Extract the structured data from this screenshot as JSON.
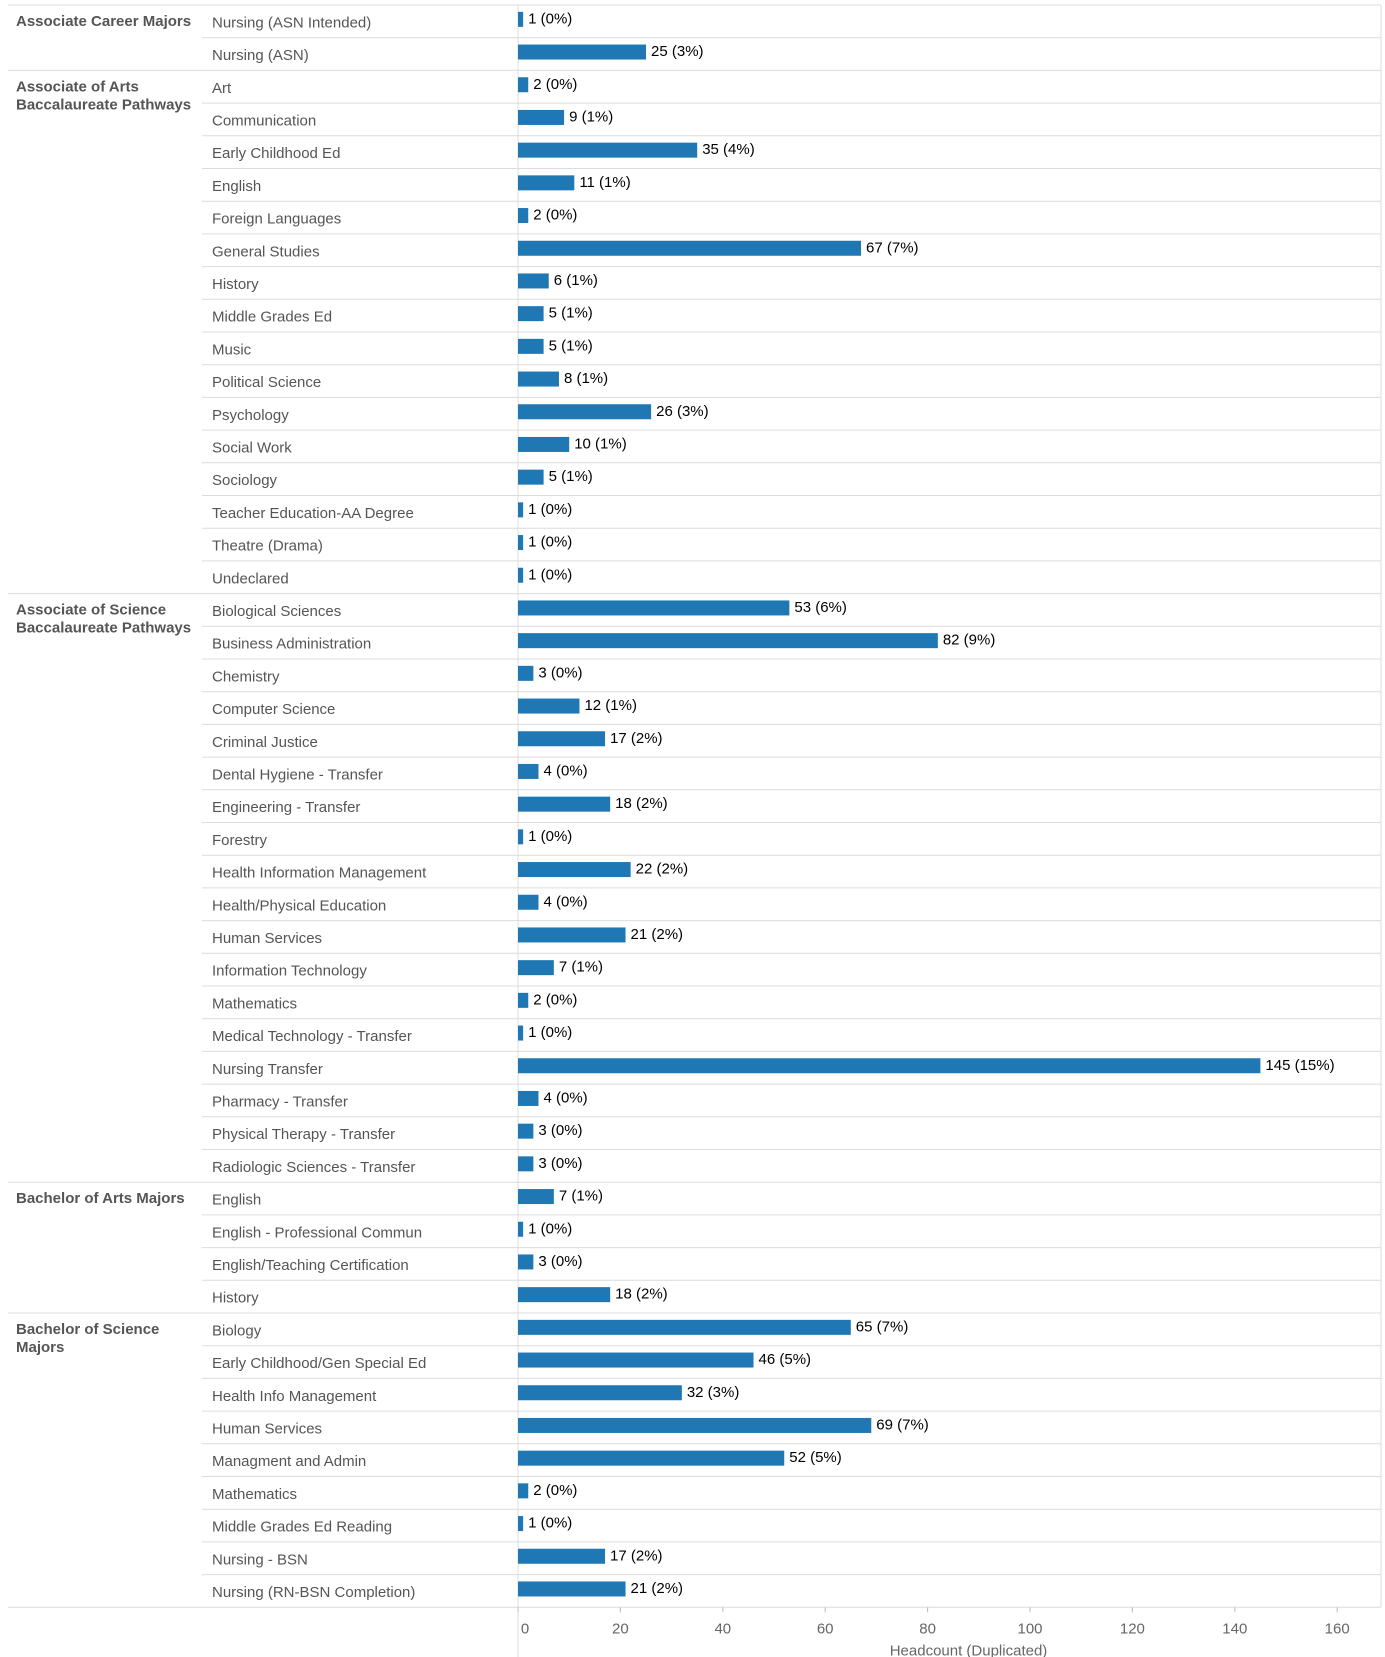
{
  "chart_data": {
    "type": "bar",
    "orientation": "horizontal",
    "xlabel": "Headcount (Duplicated)",
    "xlim": [
      0,
      165
    ],
    "x_ticks": [
      0,
      20,
      40,
      60,
      80,
      100,
      120,
      140,
      160
    ],
    "bar_color": "#1f77b4",
    "grid": false,
    "groups": [
      {
        "name": "Associate Career Majors",
        "items": [
          {
            "label": "Nursing (ASN Intended)",
            "value": 1,
            "pct": "0%"
          },
          {
            "label": "Nursing (ASN)",
            "value": 25,
            "pct": "3%"
          }
        ]
      },
      {
        "name": "Associate of Arts Baccalaureate Pathways",
        "items": [
          {
            "label": "Art",
            "value": 2,
            "pct": "0%"
          },
          {
            "label": "Communication",
            "value": 9,
            "pct": "1%"
          },
          {
            "label": "Early Childhood Ed",
            "value": 35,
            "pct": "4%"
          },
          {
            "label": "English",
            "value": 11,
            "pct": "1%"
          },
          {
            "label": "Foreign Languages",
            "value": 2,
            "pct": "0%"
          },
          {
            "label": "General Studies",
            "value": 67,
            "pct": "7%"
          },
          {
            "label": "History",
            "value": 6,
            "pct": "1%"
          },
          {
            "label": "Middle Grades Ed",
            "value": 5,
            "pct": "1%"
          },
          {
            "label": "Music",
            "value": 5,
            "pct": "1%"
          },
          {
            "label": "Political Science",
            "value": 8,
            "pct": "1%"
          },
          {
            "label": "Psychology",
            "value": 26,
            "pct": "3%"
          },
          {
            "label": "Social Work",
            "value": 10,
            "pct": "1%"
          },
          {
            "label": "Sociology",
            "value": 5,
            "pct": "1%"
          },
          {
            "label": "Teacher Education-AA Degree",
            "value": 1,
            "pct": "0%"
          },
          {
            "label": "Theatre (Drama)",
            "value": 1,
            "pct": "0%"
          },
          {
            "label": "Undeclared",
            "value": 1,
            "pct": "0%"
          }
        ]
      },
      {
        "name": "Associate of Science Baccalaureate Pathways",
        "items": [
          {
            "label": "Biological Sciences",
            "value": 53,
            "pct": "6%"
          },
          {
            "label": "Business Administration",
            "value": 82,
            "pct": "9%"
          },
          {
            "label": "Chemistry",
            "value": 3,
            "pct": "0%"
          },
          {
            "label": "Computer Science",
            "value": 12,
            "pct": "1%"
          },
          {
            "label": "Criminal Justice",
            "value": 17,
            "pct": "2%"
          },
          {
            "label": "Dental Hygiene - Transfer",
            "value": 4,
            "pct": "0%"
          },
          {
            "label": "Engineering - Transfer",
            "value": 18,
            "pct": "2%"
          },
          {
            "label": "Forestry",
            "value": 1,
            "pct": "0%"
          },
          {
            "label": "Health Information Management",
            "value": 22,
            "pct": "2%"
          },
          {
            "label": "Health/Physical Education",
            "value": 4,
            "pct": "0%"
          },
          {
            "label": "Human Services",
            "value": 21,
            "pct": "2%"
          },
          {
            "label": "Information Technology",
            "value": 7,
            "pct": "1%"
          },
          {
            "label": "Mathematics",
            "value": 2,
            "pct": "0%"
          },
          {
            "label": "Medical Technology - Transfer",
            "value": 1,
            "pct": "0%"
          },
          {
            "label": "Nursing Transfer",
            "value": 145,
            "pct": "15%"
          },
          {
            "label": "Pharmacy - Transfer",
            "value": 4,
            "pct": "0%"
          },
          {
            "label": "Physical Therapy - Transfer",
            "value": 3,
            "pct": "0%"
          },
          {
            "label": "Radiologic Sciences - Transfer",
            "value": 3,
            "pct": "0%"
          }
        ]
      },
      {
        "name": "Bachelor of Arts Majors",
        "items": [
          {
            "label": "English",
            "value": 7,
            "pct": "1%"
          },
          {
            "label": "English - Professional Commun",
            "value": 1,
            "pct": "0%"
          },
          {
            "label": "English/Teaching Certification",
            "value": 3,
            "pct": "0%"
          },
          {
            "label": "History",
            "value": 18,
            "pct": "2%"
          }
        ]
      },
      {
        "name": "Bachelor of Science Majors",
        "items": [
          {
            "label": "Biology",
            "value": 65,
            "pct": "7%"
          },
          {
            "label": "Early Childhood/Gen Special Ed",
            "value": 46,
            "pct": "5%"
          },
          {
            "label": "Health Info Management",
            "value": 32,
            "pct": "3%"
          },
          {
            "label": "Human Services",
            "value": 69,
            "pct": "7%"
          },
          {
            "label": "Managment and Admin",
            "value": 52,
            "pct": "5%"
          },
          {
            "label": "Mathematics",
            "value": 2,
            "pct": "0%"
          },
          {
            "label": "Middle Grades Ed Reading",
            "value": 1,
            "pct": "0%"
          },
          {
            "label": "Nursing - BSN",
            "value": 17,
            "pct": "2%"
          },
          {
            "label": "Nursing (RN-BSN Completion)",
            "value": 21,
            "pct": "2%"
          }
        ]
      }
    ]
  }
}
